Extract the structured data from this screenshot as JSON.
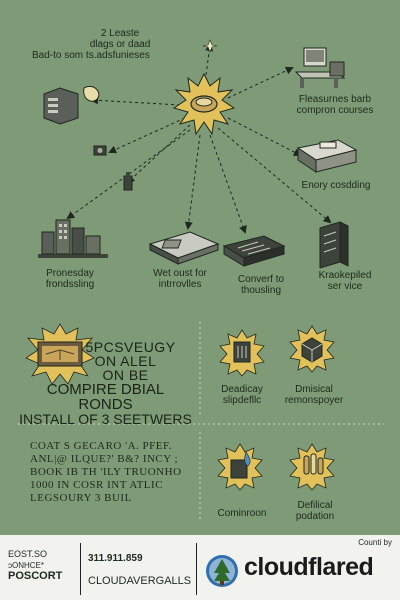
{
  "intro": {
    "line1": "2 Leaste",
    "line2": "dlags or daad",
    "line3": "Bad-to som ts.adsfunieses"
  },
  "nodes": {
    "top_right": {
      "line1": "Fleasurnes barb",
      "line2": "compron courses"
    },
    "right_mid": {
      "line1": "Enory cosdding"
    },
    "bottom_left": {
      "line1": "Pronesday",
      "line2": "frondssling"
    },
    "bottom_center": {
      "line1": "Wet oust for",
      "line2": "intrrovlles"
    },
    "bottom_center_right": {
      "line1": "Converf to",
      "line2": "thousling"
    },
    "bottom_right": {
      "line1": "Kraokepiled",
      "line2": "ser vice"
    }
  },
  "middle": {
    "heading_line1": "5PCSVEUGY",
    "heading_line2": "ON ALEL",
    "heading_line3": "ON BE",
    "heading_line4": "COMPIRE DBIAL RONDS",
    "heading_line5": "INSTALL OF 3 SEETWERS",
    "badge1": {
      "line1": "Deadicay",
      "line2": "slipdefllc"
    },
    "badge2": {
      "line1": "Dmisical",
      "line2": "remonspoyer"
    }
  },
  "lower": {
    "para_line1": "COAT S GECARO 'A. PFEF.",
    "para_line2": "ANL|@ ILQUE?' B&? INCY ;",
    "para_line3": "BOOK IB TH 'ILY TRUONHO",
    "para_line4": "1000 IN COSR INT ATLIC",
    "para_line5": "LEGSOURY 3 BUIL",
    "badge3": {
      "line1": "Cominroon"
    },
    "badge4": {
      "line1": "Defilical",
      "line2": "podation"
    }
  },
  "footer": {
    "counti_by": "Counti by",
    "left_line1": "EOST.SO",
    "left_line2": "ɔONHCE*",
    "left_line3": "POSCORT",
    "phone": "311.911.859",
    "company": "CLOUDAVERGALLS",
    "brand": "cloudflared"
  },
  "colors": {
    "background": "#7e9a76",
    "sunburst": "#e2c15a",
    "line": "#1d2820",
    "footer": "#f2f2ef"
  }
}
